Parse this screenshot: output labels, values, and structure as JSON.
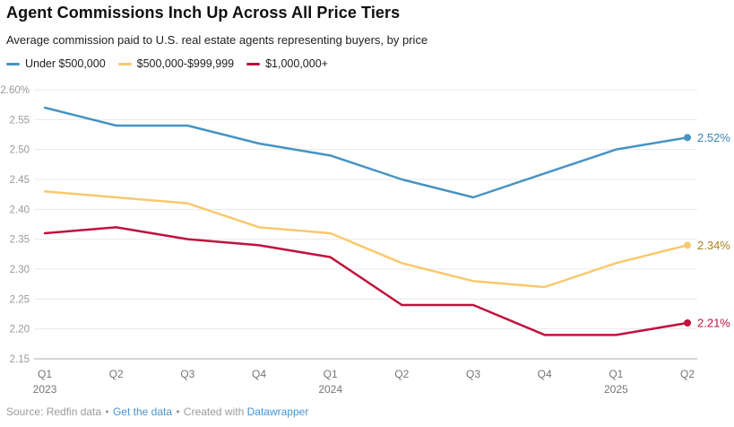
{
  "chart_data": {
    "type": "line",
    "title": "Agent Commissions Inch Up Across All Price Tiers",
    "subtitle": "Average commission paid to U.S. real estate agents representing buyers, by price",
    "xlabel": "",
    "ylabel": "",
    "ylim": [
      2.15,
      2.6
    ],
    "grid": true,
    "legend_position": "top",
    "categories": [
      {
        "q": "Q1",
        "year": "2023"
      },
      {
        "q": "Q2"
      },
      {
        "q": "Q3"
      },
      {
        "q": "Q4"
      },
      {
        "q": "Q1",
        "year": "2024"
      },
      {
        "q": "Q2"
      },
      {
        "q": "Q3"
      },
      {
        "q": "Q4"
      },
      {
        "q": "Q1",
        "year": "2025"
      },
      {
        "q": "Q2"
      }
    ],
    "yticks": [
      {
        "value": 2.6,
        "label": "2.60%"
      },
      {
        "value": 2.55,
        "label": "2.55"
      },
      {
        "value": 2.5,
        "label": "2.50"
      },
      {
        "value": 2.45,
        "label": "2.45"
      },
      {
        "value": 2.4,
        "label": "2.40"
      },
      {
        "value": 2.35,
        "label": "2.35"
      },
      {
        "value": 2.3,
        "label": "2.30"
      },
      {
        "value": 2.25,
        "label": "2.25"
      },
      {
        "value": 2.2,
        "label": "2.20"
      },
      {
        "value": 2.15,
        "label": "2.15"
      }
    ],
    "series": [
      {
        "name": "Under $500,000",
        "color": "#4694c3",
        "label_color": "#3984b2",
        "end_label": "2.52%",
        "values": [
          2.57,
          2.54,
          2.54,
          2.51,
          2.49,
          2.45,
          2.42,
          2.46,
          2.5,
          2.52
        ]
      },
      {
        "name": "$500,000-$999,999",
        "color": "#f9c96e",
        "label_color": "#a9821e",
        "end_label": "2.34%",
        "values": [
          2.43,
          2.42,
          2.41,
          2.37,
          2.36,
          2.31,
          2.28,
          2.27,
          2.31,
          2.34
        ]
      },
      {
        "name": "$1,000,000+",
        "color": "#c0123c",
        "label_color": "#c0123c",
        "end_label": "2.21%",
        "values": [
          2.36,
          2.37,
          2.35,
          2.34,
          2.32,
          2.24,
          2.24,
          2.19,
          2.19,
          2.21
        ]
      }
    ],
    "colors": {
      "grid_line": "#e8e8e8",
      "baseline": "#a8a8a8",
      "y_tick_text": "#9a9a9a",
      "x_tick_text": "#757575"
    }
  },
  "footer": {
    "source": "Source: Redfin data",
    "separator": "•",
    "get_data": "Get the data",
    "created": "Created with",
    "brand": "Datawrapper",
    "link_color": "#4596d1"
  }
}
